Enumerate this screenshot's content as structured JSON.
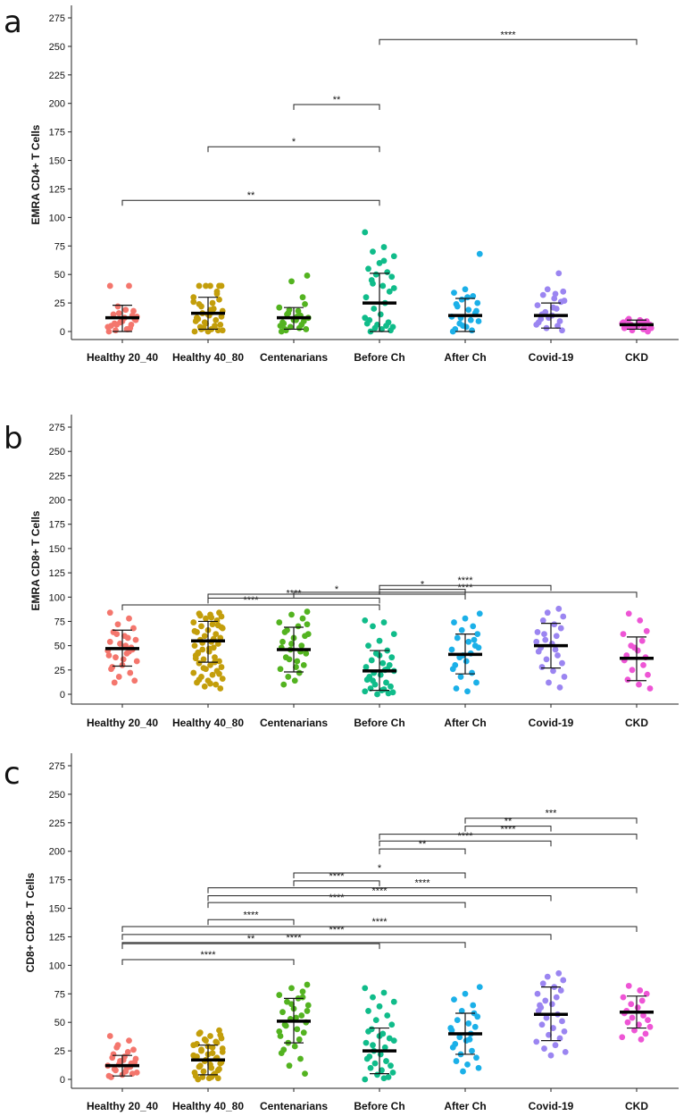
{
  "figure": {
    "colors": {
      "Healthy 20_40": "#f4766d",
      "Healthy 40_80": "#c39e0b",
      "Centenarians": "#53b320",
      "Before Ch": "#10bc8a",
      "After Ch": "#1bb0e8",
      "Covid-19": "#9b85f1",
      "CKD": "#ee55d5"
    }
  },
  "chart_data": [
    {
      "type": "scatter",
      "panel": "a",
      "ylabel": "EMRA CD4+ T Cells",
      "ylim": [
        0,
        275
      ],
      "yticks": [
        "0",
        "25",
        "50",
        "75",
        "100",
        "125",
        "150",
        "175",
        "200",
        "225",
        "250",
        "275"
      ],
      "categories": [
        "Healthy 20_40",
        "Healthy 40_80",
        "Centenarians",
        "Before Ch",
        "After Ch",
        "Covid-19",
        "CKD"
      ],
      "summary": [
        {
          "mean": 12,
          "sd_low": 0,
          "sd_high": 23
        },
        {
          "mean": 16,
          "sd_low": 2,
          "sd_high": 30
        },
        {
          "mean": 12,
          "sd_low": 2,
          "sd_high": 21
        },
        {
          "mean": 25,
          "sd_low": 0,
          "sd_high": 51
        },
        {
          "mean": 14,
          "sd_low": 0,
          "sd_high": 29
        },
        {
          "mean": 14,
          "sd_low": 3,
          "sd_high": 25
        },
        {
          "mean": 6,
          "sd_low": 2,
          "sd_high": 10
        }
      ],
      "points": [
        [
          40,
          40,
          22,
          18,
          15,
          12,
          10,
          8,
          6,
          4,
          2,
          1,
          13,
          9,
          5,
          3,
          16,
          11,
          7,
          19,
          14,
          0,
          2,
          6
        ],
        [
          40,
          40,
          40,
          40,
          40,
          35,
          30,
          25,
          22,
          18,
          15,
          12,
          10,
          8,
          6,
          4,
          2,
          1,
          0,
          20,
          16,
          14,
          11,
          9,
          5,
          3,
          28,
          24,
          19,
          13,
          7,
          33,
          26,
          17,
          2,
          1,
          0,
          12
        ],
        [
          49,
          44,
          30,
          21,
          18,
          15,
          12,
          10,
          8,
          6,
          4,
          2,
          1,
          13,
          9,
          5,
          3,
          16,
          11,
          7,
          0,
          14,
          19,
          24,
          2,
          10
        ],
        [
          87,
          74,
          70,
          66,
          60,
          55,
          52,
          50,
          48,
          45,
          40,
          35,
          30,
          25,
          20,
          15,
          10,
          7,
          5,
          3,
          1,
          0,
          2,
          4,
          6,
          8,
          12,
          62,
          42,
          38
        ],
        [
          68,
          37,
          34,
          31,
          28,
          25,
          22,
          19,
          16,
          13,
          10,
          7,
          4,
          2,
          0,
          1,
          12,
          18,
          24,
          30,
          9,
          5
        ],
        [
          51,
          37,
          35,
          32,
          29,
          26,
          23,
          20,
          17,
          14,
          11,
          8,
          5,
          3,
          1,
          15,
          21,
          27,
          12,
          9,
          6,
          33
        ],
        [
          11,
          10,
          9,
          8,
          7,
          6,
          5,
          4,
          3,
          2,
          1,
          0,
          10,
          8,
          6,
          4,
          2,
          7,
          9,
          5,
          3
        ]
      ],
      "brackets": [
        {
          "from": 0,
          "to": 3,
          "y": 115,
          "label": "**"
        },
        {
          "from": 1,
          "to": 3,
          "y": 162,
          "label": "*"
        },
        {
          "from": 2,
          "to": 3,
          "y": 199,
          "label": "**"
        },
        {
          "from": 3,
          "to": 6,
          "y": 256,
          "label": "****"
        }
      ]
    },
    {
      "type": "scatter",
      "panel": "b",
      "ylabel": "EMRA CD8+ T Cells",
      "ylim": [
        0,
        275
      ],
      "yticks": [
        "0",
        "25",
        "50",
        "75",
        "100",
        "125",
        "150",
        "175",
        "200",
        "225",
        "250",
        "275"
      ],
      "categories": [
        "Healthy 20_40",
        "Healthy 40_80",
        "Centenarians",
        "Before Ch",
        "After Ch",
        "Covid-19",
        "CKD"
      ],
      "summary": [
        {
          "mean": 47,
          "sd_low": 29,
          "sd_high": 66
        },
        {
          "mean": 55,
          "sd_low": 33,
          "sd_high": 75
        },
        {
          "mean": 46,
          "sd_low": 23,
          "sd_high": 69
        },
        {
          "mean": 24,
          "sd_low": 4,
          "sd_high": 45
        },
        {
          "mean": 41,
          "sd_low": 21,
          "sd_high": 62
        },
        {
          "mean": 50,
          "sd_low": 27,
          "sd_high": 73
        },
        {
          "mean": 37,
          "sd_low": 14,
          "sd_high": 59
        }
      ],
      "points": [
        [
          84,
          78,
          72,
          68,
          64,
          60,
          56,
          52,
          48,
          45,
          42,
          38,
          34,
          30,
          26,
          22,
          18,
          14,
          12,
          50,
          46,
          40,
          58,
          62,
          36,
          28,
          54,
          44
        ],
        [
          84,
          83,
          82,
          80,
          78,
          76,
          74,
          72,
          70,
          68,
          66,
          64,
          62,
          60,
          58,
          56,
          54,
          52,
          50,
          48,
          46,
          44,
          42,
          40,
          38,
          36,
          34,
          32,
          30,
          28,
          26,
          24,
          22,
          20,
          18,
          16,
          14,
          12,
          10,
          8,
          6,
          81,
          79,
          71,
          65,
          57,
          53,
          47,
          43,
          37,
          33,
          27,
          21,
          15,
          11,
          69
        ],
        [
          85,
          82,
          78,
          74,
          70,
          66,
          62,
          58,
          54,
          50,
          46,
          42,
          38,
          34,
          30,
          26,
          22,
          18,
          14,
          10,
          48,
          44,
          36,
          60,
          64,
          28,
          72,
          52
        ],
        [
          76,
          74,
          70,
          62,
          55,
          50,
          45,
          42,
          38,
          35,
          32,
          30,
          28,
          25,
          22,
          20,
          18,
          15,
          12,
          10,
          8,
          6,
          4,
          2,
          0,
          1,
          3,
          5,
          14,
          24,
          40,
          16,
          26
        ],
        [
          83,
          78,
          74,
          70,
          66,
          62,
          58,
          54,
          50,
          46,
          42,
          38,
          34,
          30,
          26,
          22,
          18,
          12,
          6,
          3,
          48,
          40,
          56
        ],
        [
          88,
          84,
          80,
          76,
          72,
          68,
          64,
          60,
          56,
          52,
          48,
          44,
          40,
          36,
          32,
          28,
          24,
          18,
          12,
          7,
          54,
          46,
          62
        ],
        [
          83,
          76,
          65,
          62,
          55,
          50,
          45,
          40,
          35,
          30,
          25,
          20,
          15,
          10,
          6,
          48,
          38
        ]
      ],
      "brackets": [
        {
          "from": 0,
          "to": 3,
          "y": 92,
          "label": "****"
        },
        {
          "from": 1,
          "to": 3,
          "y": 99,
          "label": "****"
        },
        {
          "from": 1,
          "to": 4,
          "y": 103,
          "label": "*"
        },
        {
          "from": 2,
          "to": 6,
          "y": 105,
          "label": "****"
        },
        {
          "from": 3,
          "to": 4,
          "y": 108,
          "label": "*"
        },
        {
          "from": 3,
          "to": 5,
          "y": 112,
          "label": "****"
        }
      ]
    },
    {
      "type": "scatter",
      "panel": "c",
      "ylabel": "CD8+ CD28- T Cells",
      "ylim": [
        0,
        275
      ],
      "yticks": [
        "0",
        "25",
        "50",
        "75",
        "100",
        "125",
        "150",
        "175",
        "200",
        "225",
        "250",
        "275"
      ],
      "categories": [
        "Healthy 20_40",
        "Healthy 40_80",
        "Centenarians",
        "Before Ch",
        "After Ch",
        "Covid-19",
        "CKD"
      ],
      "summary": [
        {
          "mean": 12,
          "sd_low": 3,
          "sd_high": 21
        },
        {
          "mean": 17,
          "sd_low": 4,
          "sd_high": 30
        },
        {
          "mean": 51,
          "sd_low": 32,
          "sd_high": 71
        },
        {
          "mean": 25,
          "sd_low": 5,
          "sd_high": 45
        },
        {
          "mean": 40,
          "sd_low": 22,
          "sd_high": 58
        },
        {
          "mean": 57,
          "sd_low": 34,
          "sd_high": 81
        },
        {
          "mean": 59,
          "sd_low": 45,
          "sd_high": 73
        }
      ],
      "points": [
        [
          38,
          34,
          30,
          26,
          22,
          20,
          18,
          16,
          14,
          12,
          10,
          8,
          6,
          4,
          2,
          11,
          13,
          15,
          9,
          7,
          5,
          3,
          24,
          28,
          17,
          19
        ],
        [
          43,
          40,
          38,
          36,
          34,
          32,
          30,
          28,
          26,
          24,
          22,
          20,
          18,
          16,
          14,
          12,
          10,
          8,
          6,
          4,
          2,
          1,
          0,
          3,
          5,
          7,
          9,
          11,
          13,
          15,
          17,
          19,
          21,
          23,
          25,
          27,
          29,
          31,
          33,
          35,
          39,
          41,
          2,
          1
        ],
        [
          83,
          80,
          77,
          74,
          71,
          68,
          65,
          62,
          59,
          56,
          53,
          50,
          47,
          44,
          41,
          38,
          35,
          32,
          29,
          26,
          23,
          18,
          12,
          5,
          48,
          54,
          60,
          66,
          72,
          42
        ],
        [
          80,
          76,
          72,
          68,
          64,
          60,
          56,
          52,
          48,
          44,
          40,
          36,
          32,
          28,
          25,
          22,
          20,
          18,
          16,
          14,
          12,
          10,
          8,
          6,
          4,
          2,
          0,
          1,
          30,
          34,
          38,
          42
        ],
        [
          81,
          75,
          70,
          65,
          60,
          55,
          52,
          49,
          46,
          43,
          40,
          37,
          34,
          31,
          28,
          25,
          22,
          19,
          16,
          13,
          10,
          7,
          58,
          45,
          35
        ],
        [
          93,
          90,
          87,
          84,
          81,
          78,
          75,
          72,
          69,
          66,
          63,
          60,
          57,
          54,
          51,
          48,
          45,
          42,
          39,
          36,
          33,
          30,
          27,
          24,
          21,
          65
        ],
        [
          82,
          78,
          75,
          72,
          69,
          66,
          63,
          60,
          58,
          56,
          54,
          52,
          50,
          48,
          46,
          43,
          40,
          37,
          35
        ]
      ],
      "brackets": [
        {
          "from": 0,
          "to": 2,
          "y": 105,
          "label": "****"
        },
        {
          "from": 0,
          "to": 3,
          "y": 119,
          "label": "**"
        },
        {
          "from": 0,
          "to": 4,
          "y": 120,
          "label": "****"
        },
        {
          "from": 0,
          "to": 5,
          "y": 127,
          "label": "****"
        },
        {
          "from": 0,
          "to": 6,
          "y": 134,
          "label": "****"
        },
        {
          "from": 1,
          "to": 2,
          "y": 140,
          "label": "****"
        },
        {
          "from": 1,
          "to": 4,
          "y": 155,
          "label": "****"
        },
        {
          "from": 1,
          "to": 5,
          "y": 161,
          "label": "****"
        },
        {
          "from": 1,
          "to": 6,
          "y": 168,
          "label": "****"
        },
        {
          "from": 2,
          "to": 3,
          "y": 174,
          "label": "****"
        },
        {
          "from": 2,
          "to": 4,
          "y": 181,
          "label": "*"
        },
        {
          "from": 3,
          "to": 4,
          "y": 202,
          "label": "**"
        },
        {
          "from": 3,
          "to": 5,
          "y": 209,
          "label": "****"
        },
        {
          "from": 3,
          "to": 6,
          "y": 215,
          "label": "****"
        },
        {
          "from": 4,
          "to": 5,
          "y": 222,
          "label": "**"
        },
        {
          "from": 4,
          "to": 6,
          "y": 229,
          "label": "***"
        }
      ]
    }
  ]
}
